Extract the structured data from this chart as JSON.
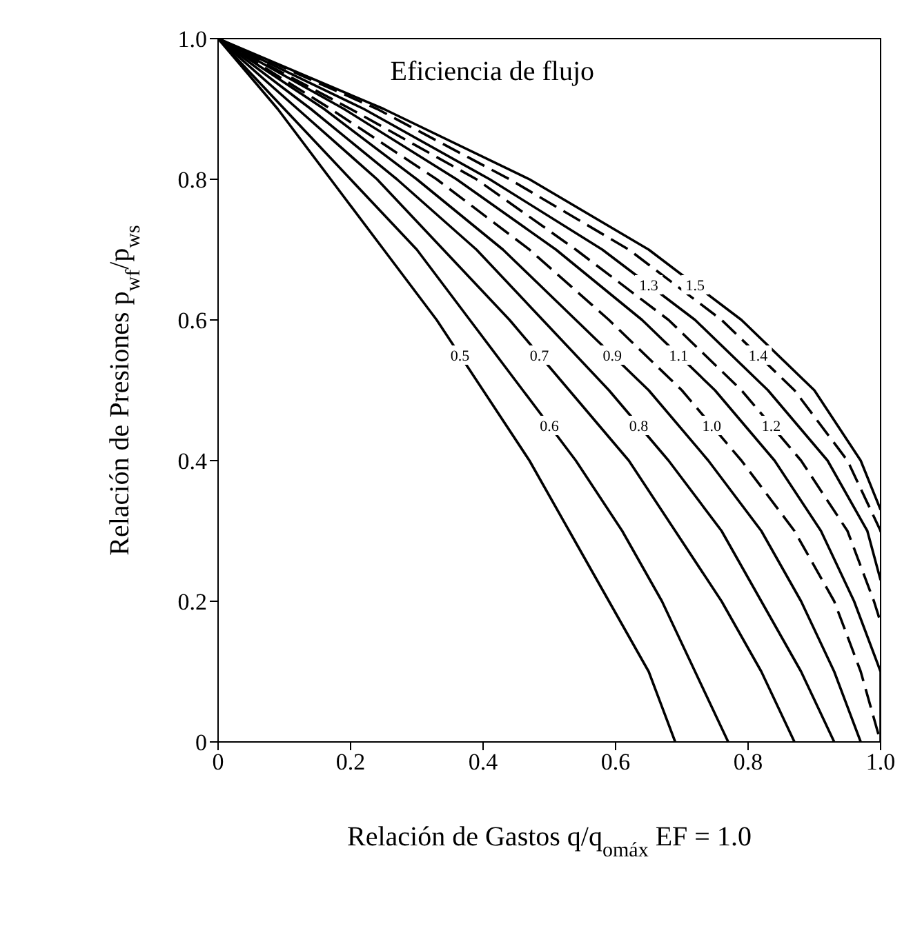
{
  "chart_data": {
    "type": "line",
    "annotations": [
      "Eficiencia de flujo"
    ],
    "xlabel": "Relación de Gastos q/q$_{omáx}$  EF = 1.0",
    "ylabel": "Relación de Presiones p$_{wf}$/p$_{ws}$",
    "xlim": [
      0,
      1
    ],
    "ylim": [
      0,
      1
    ],
    "xticks": [
      0,
      0.2,
      0.4,
      0.6,
      0.8,
      {
        "value": 1,
        "label": "1.0"
      }
    ],
    "yticks": [
      0,
      0.2,
      0.4,
      0.6,
      0.8,
      {
        "value": 1,
        "label": "1.0"
      }
    ],
    "grid": false,
    "legend": false,
    "marker": "none",
    "series": [
      {
        "name": "0.5",
        "color": "#000000",
        "line_style": "solid",
        "x": [
          0,
          0.09,
          0.17,
          0.25,
          0.33,
          0.4,
          0.47,
          0.53,
          0.59,
          0.65,
          0.69
        ],
        "values": [
          1,
          0.9,
          0.8,
          0.7,
          0.6,
          0.5,
          0.4,
          0.3,
          0.2,
          0.1,
          0
        ]
      },
      {
        "name": "0.6",
        "color": "#000000",
        "line_style": "solid",
        "x": [
          0,
          0.1,
          0.2,
          0.3,
          0.38,
          0.46,
          0.54,
          0.61,
          0.67,
          0.72,
          0.77
        ],
        "values": [
          1,
          0.9,
          0.8,
          0.7,
          0.6,
          0.5,
          0.4,
          0.3,
          0.2,
          0.1,
          0
        ]
      },
      {
        "name": "0.7",
        "color": "#000000",
        "line_style": "solid",
        "x": [
          0,
          0.12,
          0.24,
          0.34,
          0.44,
          0.53,
          0.62,
          0.69,
          0.76,
          0.82,
          0.87
        ],
        "values": [
          1,
          0.9,
          0.8,
          0.7,
          0.6,
          0.5,
          0.4,
          0.3,
          0.2,
          0.1,
          0
        ]
      },
      {
        "name": "0.8",
        "color": "#000000",
        "line_style": "solid",
        "x": [
          0,
          0.14,
          0.27,
          0.39,
          0.49,
          0.59,
          0.68,
          0.76,
          0.82,
          0.88,
          0.93
        ],
        "values": [
          1,
          0.9,
          0.8,
          0.7,
          0.6,
          0.5,
          0.4,
          0.3,
          0.2,
          0.1,
          0
        ]
      },
      {
        "name": "0.9",
        "color": "#000000",
        "line_style": "solid",
        "x": [
          0,
          0.16,
          0.3,
          0.43,
          0.54,
          0.65,
          0.74,
          0.82,
          0.88,
          0.93,
          0.97
        ],
        "values": [
          1,
          0.9,
          0.8,
          0.7,
          0.6,
          0.5,
          0.4,
          0.3,
          0.2,
          0.1,
          0
        ]
      },
      {
        "name": "1.0",
        "color": "#000000",
        "line_style": "dashed",
        "x": [
          0,
          0.17,
          0.33,
          0.47,
          0.59,
          0.7,
          0.79,
          0.87,
          0.93,
          0.97,
          1
        ],
        "values": [
          1,
          0.9,
          0.8,
          0.7,
          0.6,
          0.5,
          0.4,
          0.3,
          0.2,
          0.1,
          0
        ]
      },
      {
        "name": "1.1",
        "color": "#000000",
        "line_style": "solid",
        "x": [
          0,
          0.19,
          0.36,
          0.51,
          0.64,
          0.75,
          0.84,
          0.91,
          0.96,
          1,
          1
        ],
        "values": [
          1,
          0.9,
          0.8,
          0.7,
          0.6,
          0.5,
          0.4,
          0.3,
          0.2,
          0.1,
          0
        ]
      },
      {
        "name": "1.2",
        "color": "#000000",
        "line_style": "dashed",
        "x": [
          0,
          0.2,
          0.39,
          0.54,
          0.68,
          0.79,
          0.88,
          0.95,
          0.99,
          1
        ],
        "values": [
          1,
          0.9,
          0.8,
          0.7,
          0.6,
          0.5,
          0.4,
          0.3,
          0.2,
          0.17
        ]
      },
      {
        "name": "1.3",
        "color": "#000000",
        "line_style": "solid",
        "x": [
          0,
          0.22,
          0.41,
          0.58,
          0.72,
          0.83,
          0.92,
          0.98,
          1
        ],
        "values": [
          1,
          0.9,
          0.8,
          0.7,
          0.6,
          0.5,
          0.4,
          0.3,
          0.23
        ]
      },
      {
        "name": "1.4",
        "color": "#000000",
        "line_style": "dashed",
        "x": [
          0,
          0.24,
          0.44,
          0.62,
          0.76,
          0.87,
          0.95,
          1,
          1
        ],
        "values": [
          1,
          0.9,
          0.8,
          0.7,
          0.6,
          0.5,
          0.4,
          0.3,
          0.29
        ]
      },
      {
        "name": "1.5",
        "color": "#000000",
        "line_style": "solid",
        "x": [
          0,
          0.25,
          0.47,
          0.65,
          0.79,
          0.9,
          0.97,
          1
        ],
        "values": [
          1,
          0.9,
          0.8,
          0.7,
          0.6,
          0.5,
          0.4,
          0.33
        ]
      }
    ]
  }
}
